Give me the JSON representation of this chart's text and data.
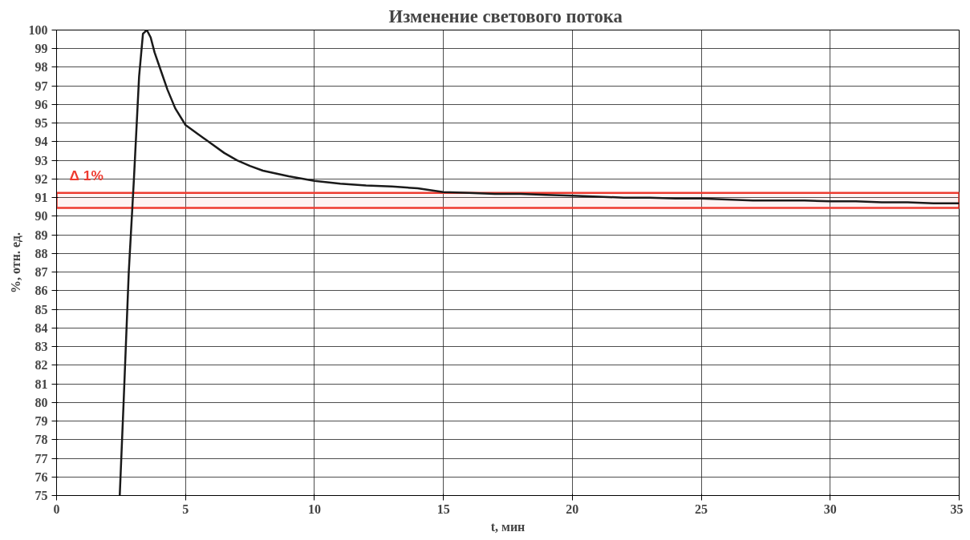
{
  "chart_data": {
    "type": "line",
    "title": "Изменение  светового потока",
    "xlabel": "t, мин",
    "ylabel": "%, отн. ед.",
    "series": [
      {
        "color": "#1a1a1a",
        "x": [
          2.45,
          2.6,
          2.8,
          3.0,
          3.2,
          3.35,
          3.5,
          3.65,
          3.8,
          4.0,
          4.3,
          4.6,
          5.0,
          5.5,
          6,
          6.5,
          7,
          7.5,
          8,
          8.5,
          9,
          10,
          11,
          12,
          13,
          14,
          15,
          16,
          17,
          18,
          19,
          20,
          21,
          22,
          23,
          24,
          25,
          26,
          27,
          28,
          29,
          30,
          31,
          32,
          33,
          34,
          35
        ],
        "values": [
          75,
          80,
          87,
          92,
          97.5,
          99.8,
          100,
          99.6,
          98.8,
          98,
          96.8,
          95.8,
          94.9,
          94.4,
          93.9,
          93.4,
          93.0,
          92.7,
          92.45,
          92.3,
          92.15,
          91.9,
          91.75,
          91.65,
          91.6,
          91.5,
          91.3,
          91.25,
          91.2,
          91.2,
          91.15,
          91.1,
          91.05,
          91.0,
          91.0,
          90.95,
          90.95,
          90.9,
          90.85,
          90.85,
          90.85,
          90.8,
          90.8,
          90.75,
          90.75,
          90.7,
          90.7
        ]
      }
    ],
    "xlim": [
      0,
      35
    ],
    "xticks": [
      0,
      5,
      10,
      15,
      20,
      25,
      30,
      35
    ],
    "ylim": [
      75,
      100
    ],
    "yticks": [
      75,
      76,
      77,
      78,
      79,
      80,
      81,
      82,
      83,
      84,
      85,
      86,
      87,
      88,
      89,
      90,
      91,
      92,
      93,
      94,
      95,
      96,
      97,
      98,
      99,
      100
    ],
    "bands": [
      {
        "axis": "y",
        "from": 90.45,
        "to": 91.25,
        "label": "Δ 1%",
        "color": "#ee3b30"
      }
    ],
    "grid": true,
    "marker": "none",
    "line_style": "solid"
  }
}
